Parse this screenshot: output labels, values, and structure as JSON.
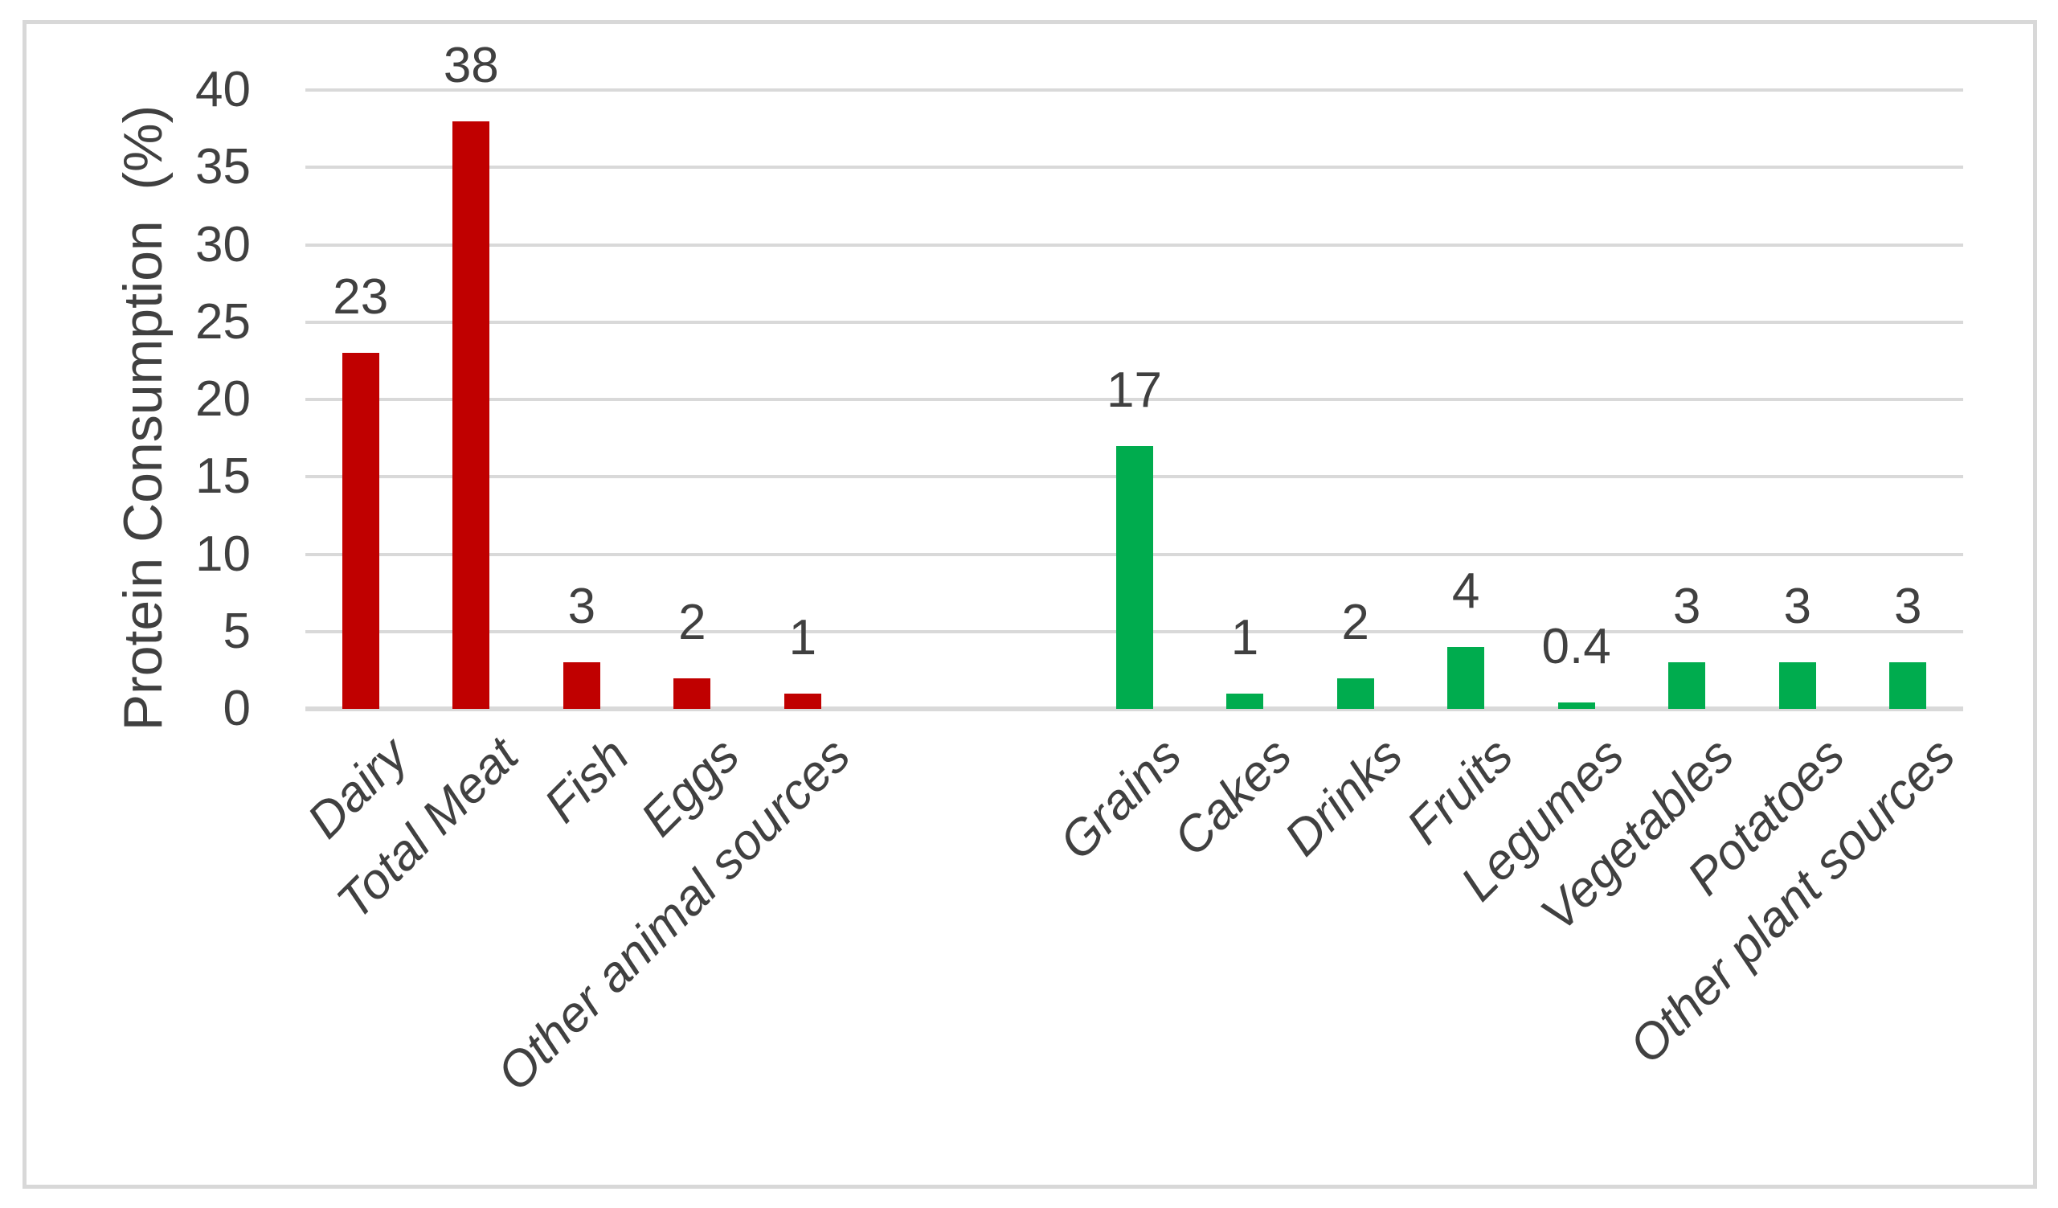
{
  "chart_data": {
    "type": "bar",
    "title": "",
    "xlabel": "",
    "ylabel": "Protein Consumption  (%)",
    "ylim": [
      0,
      40
    ],
    "yticks": [
      0,
      5,
      10,
      15,
      20,
      25,
      30,
      35,
      40
    ],
    "ytick_interval": 5,
    "grid": true,
    "legend": false,
    "gap_slots_between_groups": 2,
    "groups": [
      {
        "color": "#C00000",
        "items": [
          {
            "label": "Dairy",
            "value": 23,
            "data_label": "23"
          },
          {
            "label": "Total Meat",
            "value": 38,
            "data_label": "38"
          },
          {
            "label": "Fish",
            "value": 3,
            "data_label": "3"
          },
          {
            "label": "Eggs",
            "value": 2,
            "data_label": "2"
          },
          {
            "label": "Other animal sources",
            "value": 1,
            "data_label": "1"
          }
        ]
      },
      {
        "color": "#00AC4E",
        "items": [
          {
            "label": "Grains",
            "value": 17,
            "data_label": "17"
          },
          {
            "label": "Cakes",
            "value": 1,
            "data_label": "1"
          },
          {
            "label": "Drinks",
            "value": 2,
            "data_label": "2"
          },
          {
            "label": "Fruits",
            "value": 4,
            "data_label": "4"
          },
          {
            "label": "Legumes",
            "value": 0.4,
            "data_label": "0.4"
          },
          {
            "label": "Vegetables",
            "value": 3,
            "data_label": "3"
          },
          {
            "label": "Potatoes",
            "value": 3,
            "data_label": "3"
          },
          {
            "label": "Other plant sources",
            "value": 3,
            "data_label": "3"
          }
        ]
      }
    ],
    "style": {
      "gridline_color": "#D9D9D9",
      "frame_color": "#D8D8D8",
      "text_color": "#404040"
    }
  }
}
